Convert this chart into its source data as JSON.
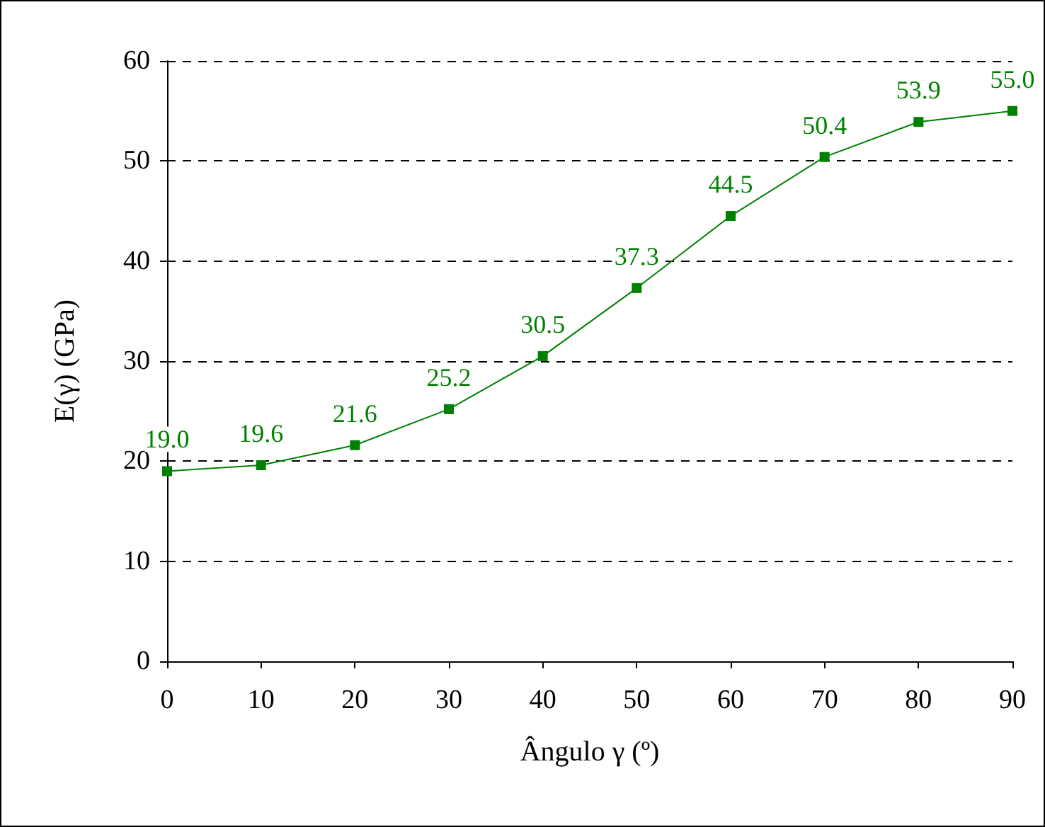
{
  "chart_data": {
    "type": "line",
    "xlabel": "Ângulo γ (º)",
    "ylabel": "E(γ) (GPa)",
    "x": [
      0,
      10,
      20,
      30,
      40,
      50,
      60,
      70,
      80,
      90
    ],
    "series": [
      {
        "color": "#008000",
        "values": [
          19.0,
          19.6,
          21.6,
          25.2,
          30.5,
          37.3,
          44.5,
          50.4,
          53.9,
          55.0
        ],
        "value_labels": [
          "19.0",
          "19.6",
          "21.6",
          "25.2",
          "30.5",
          "37.3",
          "44.5",
          "50.4",
          "53.9",
          "55.0"
        ]
      }
    ],
    "xlim": [
      0,
      90
    ],
    "xticks": [
      0,
      10,
      20,
      30,
      40,
      50,
      60,
      70,
      80,
      90
    ],
    "ylim": [
      0,
      60
    ],
    "yticks": [
      0,
      10,
      20,
      30,
      40,
      50,
      60
    ],
    "grid": "y",
    "marker": "square",
    "line_style": "solid"
  }
}
